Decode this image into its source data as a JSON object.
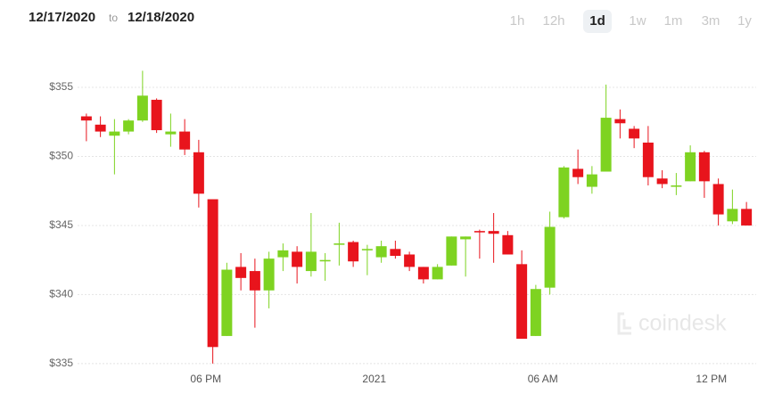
{
  "header": {
    "from": "12/17/2020",
    "separator": "to",
    "to": "12/18/2020",
    "intervals": [
      "1h",
      "12h",
      "1d",
      "1w",
      "1m",
      "3m",
      "1y"
    ],
    "active_interval": "1d"
  },
  "watermark": "coindesk",
  "chart_data": {
    "type": "candlestick",
    "categories": [
      null,
      null,
      null,
      null,
      null,
      null,
      null,
      null,
      null,
      "06 PM",
      null,
      null,
      null,
      null,
      null,
      null,
      null,
      null,
      null,
      null,
      null,
      "2021",
      null,
      null,
      null,
      null,
      null,
      null,
      null,
      null,
      null,
      null,
      null,
      "06 AM",
      null,
      null,
      null,
      null,
      null,
      null,
      null,
      null,
      null,
      null,
      null,
      "12 PM",
      null,
      null
    ],
    "open": [
      352.9,
      352.3,
      351.5,
      351.8,
      352.6,
      354.1,
      351.6,
      351.8,
      350.3,
      346.9,
      337.0,
      342.0,
      341.7,
      340.3,
      342.7,
      343.1,
      341.7,
      342.4,
      343.6,
      343.8,
      343.2,
      342.7,
      343.3,
      342.9,
      342.0,
      341.1,
      342.1,
      344.0,
      344.6,
      344.6,
      344.3,
      342.2,
      337.0,
      340.5,
      345.6,
      349.1,
      347.8,
      348.9,
      352.7,
      352.0,
      351.0,
      348.4,
      347.8,
      348.2,
      350.3,
      348.0,
      345.3,
      346.2
    ],
    "high": [
      353.1,
      352.9,
      352.7,
      352.7,
      356.2,
      354.2,
      353.1,
      352.7,
      351.2,
      346.9,
      342.3,
      343.0,
      342.6,
      343.1,
      343.7,
      343.5,
      345.9,
      343.0,
      345.2,
      343.9,
      343.6,
      343.9,
      343.9,
      343.1,
      342.0,
      342.2,
      344.2,
      344.2,
      344.7,
      345.9,
      344.6,
      343.2,
      340.7,
      346.0,
      349.3,
      350.5,
      349.3,
      355.2,
      353.4,
      352.2,
      352.2,
      349.0,
      348.8,
      350.8,
      350.4,
      348.4,
      347.6,
      346.7
    ],
    "low": [
      351.1,
      351.4,
      348.7,
      351.6,
      352.5,
      351.7,
      350.7,
      350.1,
      346.3,
      335.0,
      337.0,
      340.3,
      337.6,
      339.0,
      341.7,
      340.8,
      341.3,
      341.0,
      342.1,
      342.0,
      341.4,
      342.3,
      342.6,
      341.7,
      340.8,
      341.1,
      342.1,
      341.3,
      342.6,
      342.3,
      342.9,
      336.8,
      337.0,
      340.0,
      345.5,
      348.0,
      347.3,
      348.9,
      351.3,
      350.6,
      347.9,
      347.7,
      347.2,
      348.2,
      347.0,
      345.0,
      345.1,
      345.0
    ],
    "close": [
      352.6,
      351.8,
      351.8,
      352.6,
      354.4,
      351.9,
      351.8,
      350.5,
      347.3,
      336.2,
      341.8,
      341.2,
      340.3,
      342.6,
      343.2,
      342.0,
      343.1,
      342.5,
      343.7,
      342.4,
      343.3,
      343.5,
      342.8,
      342.0,
      341.1,
      342.0,
      344.2,
      344.2,
      344.5,
      344.4,
      342.9,
      336.8,
      340.4,
      344.9,
      349.2,
      348.5,
      348.7,
      352.8,
      352.4,
      351.3,
      348.5,
      348.0,
      347.9,
      350.3,
      348.2,
      345.8,
      346.2,
      345.0
    ],
    "up_color": "#7ed321",
    "down_color": "#e8141c",
    "ylim": [
      334.8,
      357
    ],
    "yticks": [
      {
        "value": 335,
        "label": "$335"
      },
      {
        "value": 340,
        "label": "$340"
      },
      {
        "value": 345,
        "label": "$345"
      },
      {
        "value": 350,
        "label": "$350"
      },
      {
        "value": 355,
        "label": "$355"
      }
    ],
    "grid": true
  }
}
